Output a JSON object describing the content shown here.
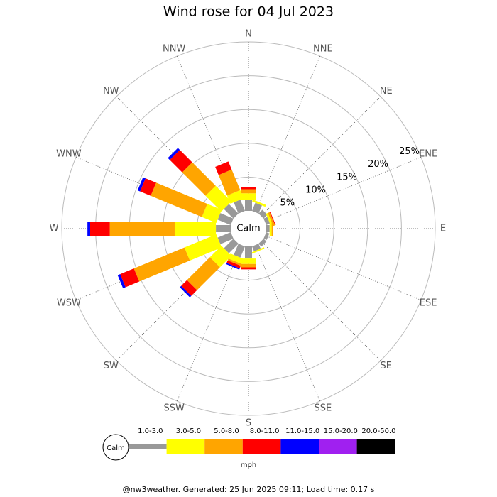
{
  "chart_data": {
    "type": "windrose",
    "title": "Wind rose for 04 Jul 2023",
    "categories": [
      "N",
      "NNE",
      "NE",
      "ENE",
      "E",
      "ESE",
      "SE",
      "SSE",
      "S",
      "SSW",
      "SW",
      "WSW",
      "W",
      "WNW",
      "NW",
      "NNW"
    ],
    "calm_label": "Calm",
    "rlim": [
      0,
      25
    ],
    "rticks": [
      {
        "value": 5,
        "label": "5%"
      },
      {
        "value": 10,
        "label": "10%"
      },
      {
        "value": 15,
        "label": "15%"
      },
      {
        "value": 20,
        "label": "20%"
      },
      {
        "value": 25,
        "label": "25%"
      }
    ],
    "series": [
      {
        "name": "1.0-3.0",
        "color": "#999999",
        "values": [
          1.6,
          1.3,
          0.8,
          0.6,
          0.5,
          0.5,
          0.6,
          0.8,
          1.8,
          1.8,
          2.0,
          2.1,
          2.2,
          2.1,
          2.0,
          1.8
        ]
      },
      {
        "name": "3.0-5.0",
        "color": "#ffff00",
        "values": [
          1.0,
          0.3,
          0,
          0.3,
          0.3,
          0,
          0,
          0.2,
          0.8,
          0.8,
          2.4,
          5.1,
          6.1,
          2.3,
          3.3,
          1.3
        ]
      },
      {
        "name": "5.0-8.0",
        "color": "#ffa500",
        "values": [
          0.6,
          0,
          0,
          0.3,
          0.2,
          0,
          0,
          0,
          0.5,
          0.3,
          4.8,
          8.1,
          9.6,
          8.2,
          4.9,
          3.3
        ]
      },
      {
        "name": "8.0-11.0",
        "color": "#ff0000",
        "values": [
          0.3,
          0,
          0,
          0.1,
          0,
          0,
          0,
          0,
          0.3,
          0.4,
          1.2,
          2.2,
          2.9,
          1.7,
          2.6,
          1.3
        ]
      },
      {
        "name": "11.0-15.0",
        "color": "#0000ff",
        "values": [
          0,
          0,
          0,
          0,
          0,
          0,
          0,
          0,
          0,
          0.2,
          0.3,
          0.4,
          0.4,
          0.4,
          0.4,
          0
        ]
      },
      {
        "name": "15.0-20.0",
        "color": "#a020f0",
        "values": [
          0,
          0,
          0,
          0,
          0,
          0,
          0,
          0,
          0,
          0,
          0,
          0,
          0,
          0,
          0,
          0
        ]
      },
      {
        "name": "20.0-50.0",
        "color": "#000000",
        "values": [
          0,
          0,
          0,
          0,
          0,
          0,
          0,
          0,
          0,
          0,
          0,
          0,
          0,
          0,
          0,
          0
        ]
      }
    ],
    "legend_unit": "mph",
    "footer": "@nw3weather. Generated: 25 Jun 2025 09:11; Load time: 0.17 s"
  }
}
